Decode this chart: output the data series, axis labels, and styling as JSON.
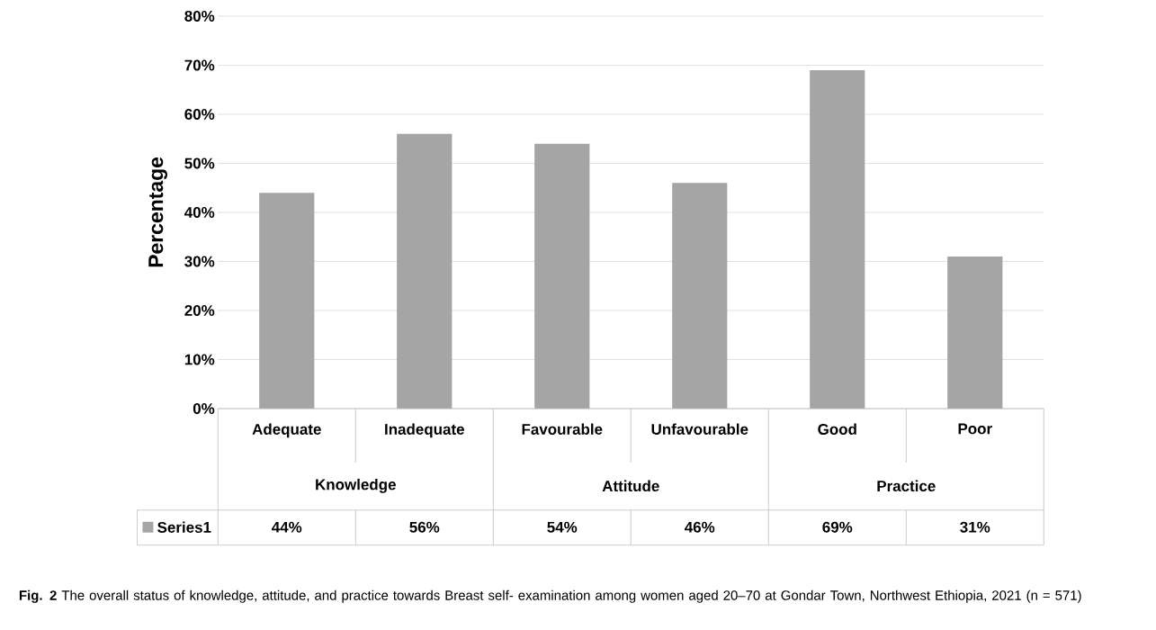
{
  "chart_data": {
    "type": "bar",
    "ylabel": "Percentage",
    "categories": [
      "Adequate",
      "Inadequate",
      "Favourable",
      "Unfavourable",
      "Good",
      "Poor"
    ],
    "series": [
      {
        "name": "Series1",
        "color": "#a5a5a5",
        "values": [
          44,
          56,
          54,
          46,
          69,
          31
        ],
        "value_labels": [
          "44%",
          "56%",
          "54%",
          "46%",
          "69%",
          "31%"
        ]
      }
    ],
    "ylim": [
      0,
      80
    ],
    "yticks": [
      {
        "value": 0,
        "label": "0%"
      },
      {
        "value": 10,
        "label": "10%"
      },
      {
        "value": 20,
        "label": "20%"
      },
      {
        "value": 30,
        "label": "30%"
      },
      {
        "value": 40,
        "label": "40%"
      },
      {
        "value": 50,
        "label": "50%"
      },
      {
        "value": 60,
        "label": "60%"
      },
      {
        "value": 70,
        "label": "70%"
      },
      {
        "value": 80,
        "label": "80%"
      }
    ],
    "grid": "y",
    "annotations": [
      "Knowledge",
      "Attitude",
      "Practice",
      "**Fig. 2** The overall status of knowledge, attitude, and practice towards Breast self- examination among women aged 20–70 at Gondar Town, Northwest Ethiopia, 2021 (n = 571)"
    ]
  }
}
